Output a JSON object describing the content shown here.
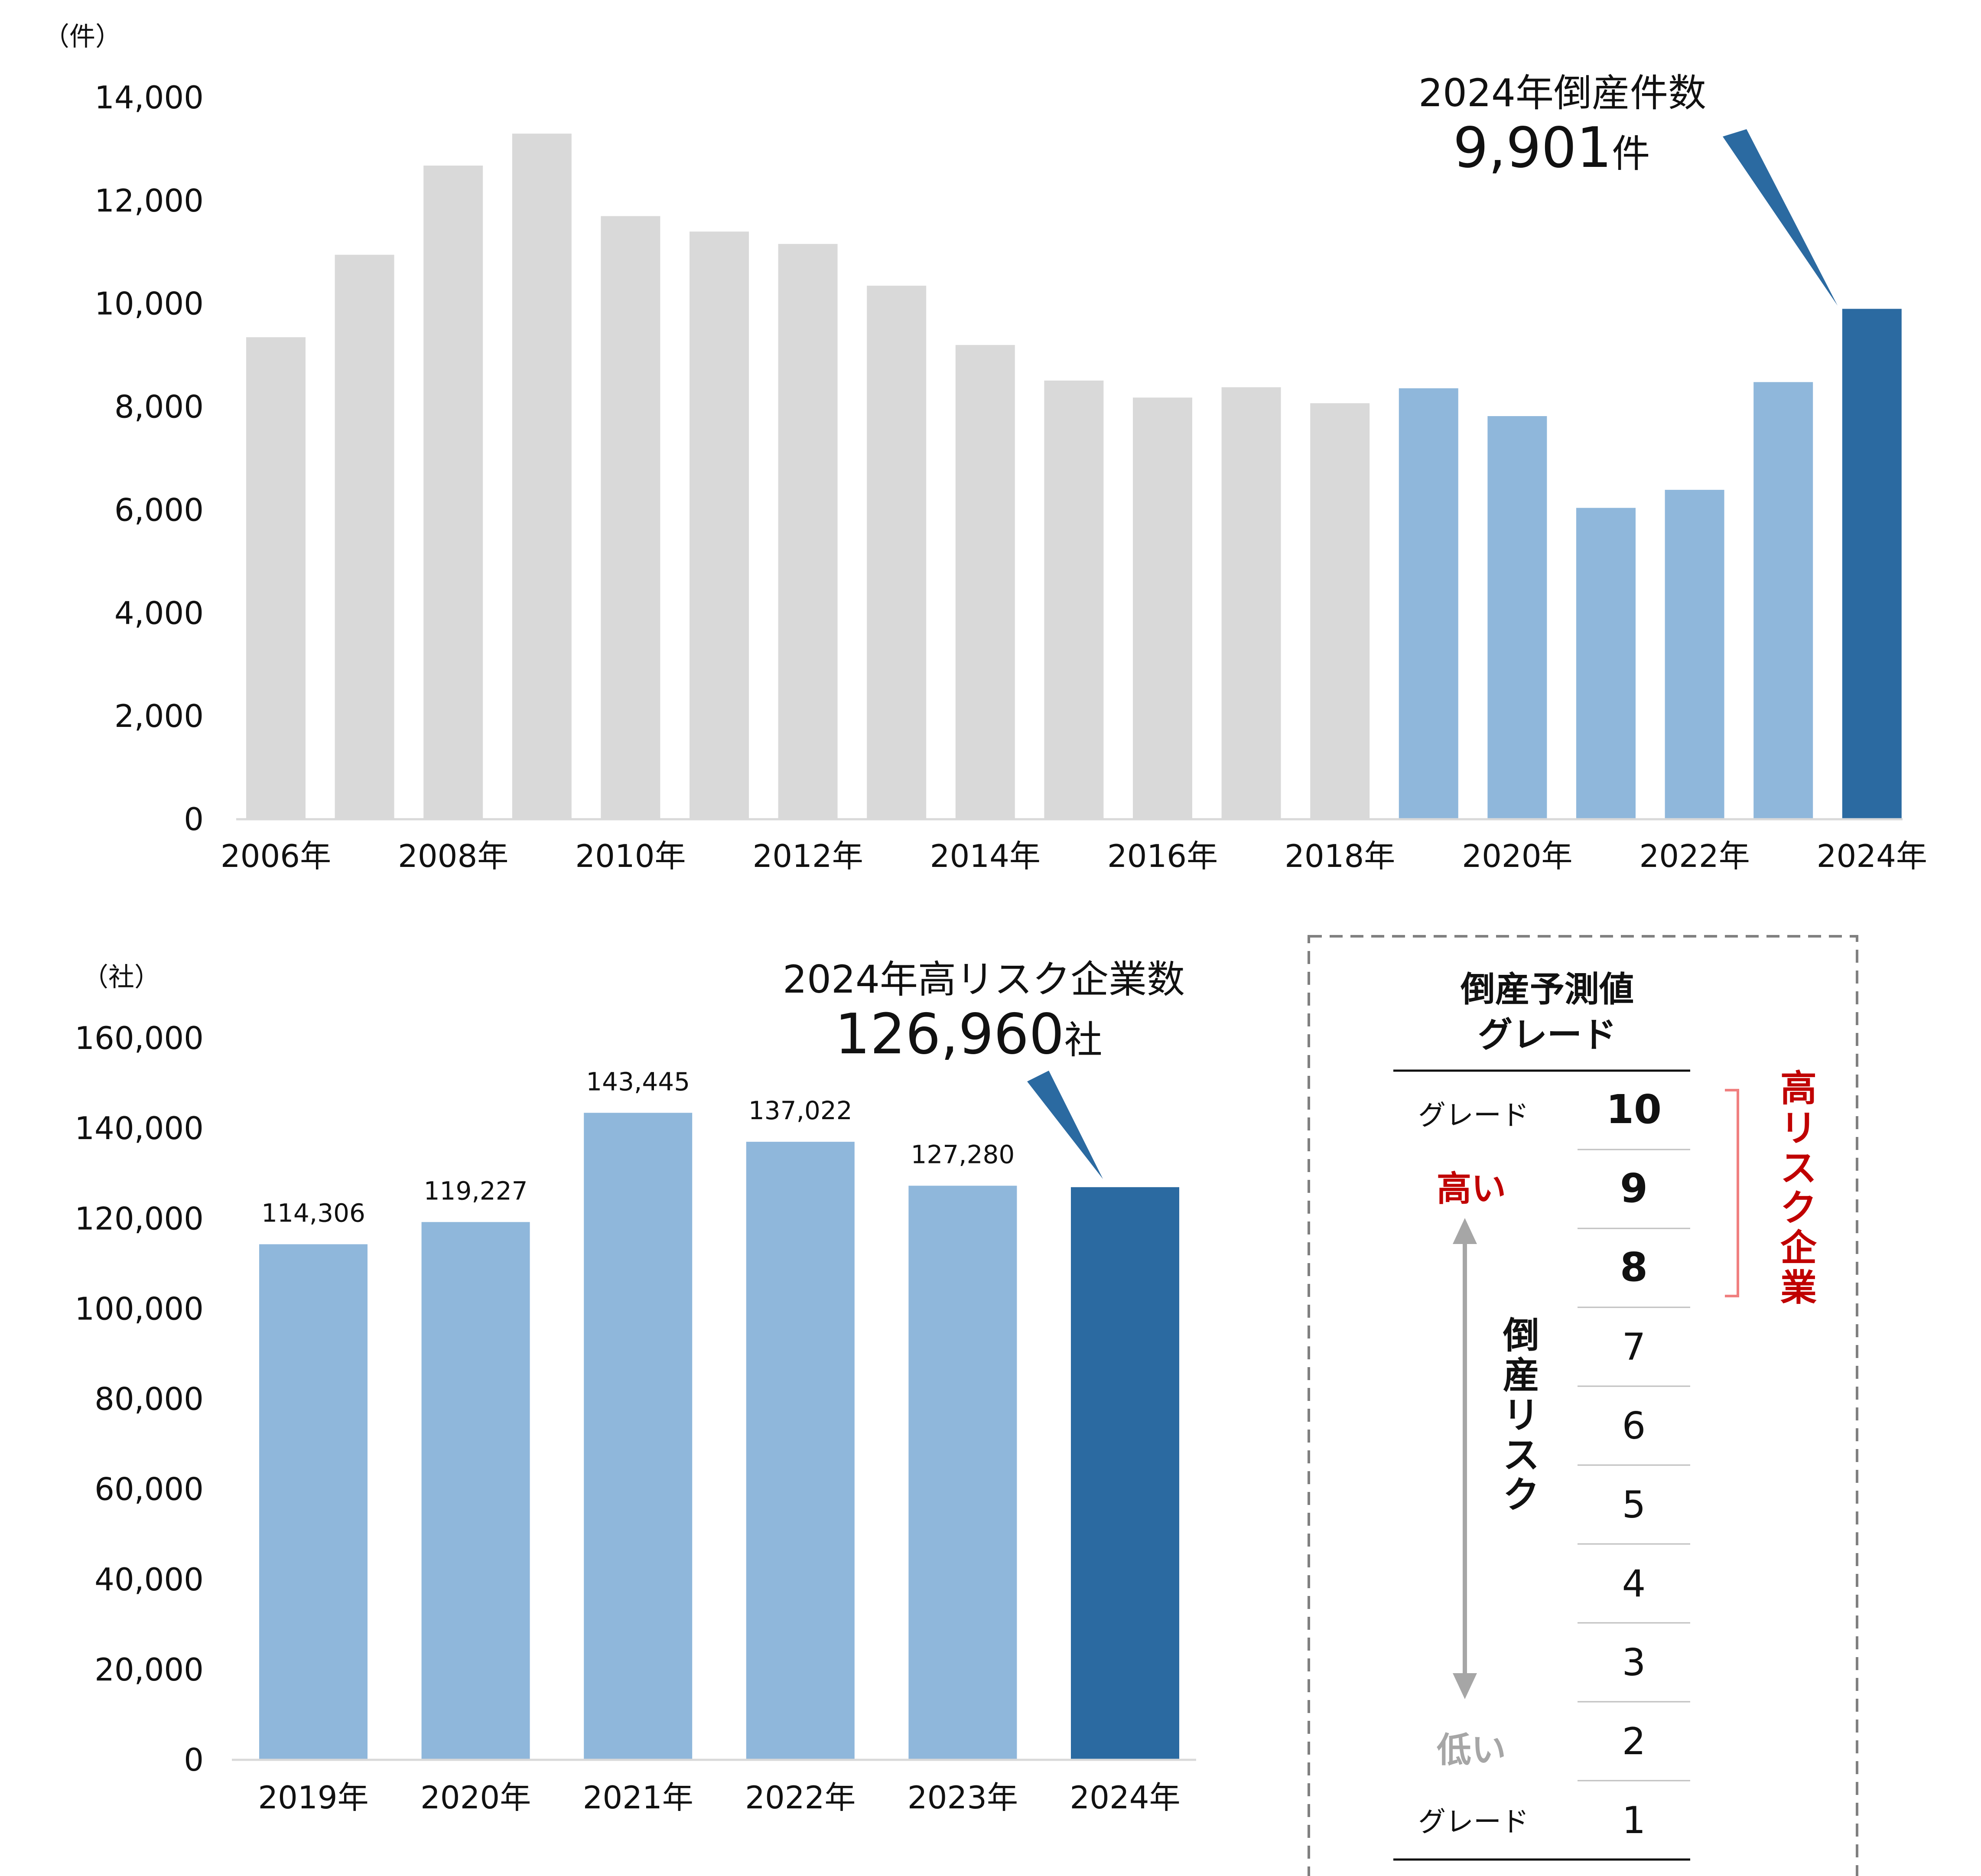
{
  "chart_data": [
    {
      "type": "bar",
      "unit_label": "（件）",
      "categories": [
        "2006年",
        "2007年",
        "2008年",
        "2009年",
        "2010年",
        "2011年",
        "2012年",
        "2013年",
        "2014年",
        "2015年",
        "2016年",
        "2017年",
        "2018年",
        "2019年",
        "2020年",
        "2021年",
        "2022年",
        "2023年",
        "2024年"
      ],
      "x_tick_labels": [
        "2006年",
        "2008年",
        "2010年",
        "2012年",
        "2014年",
        "2016年",
        "2018年",
        "2020年",
        "2022年",
        "2024年"
      ],
      "values": [
        9350,
        10950,
        12680,
        13300,
        11700,
        11400,
        11160,
        10350,
        9200,
        8510,
        8180,
        8380,
        8070,
        8360,
        7820,
        6040,
        6390,
        8480,
        9901
      ],
      "bar_colors": [
        "#d9d9d9",
        "#d9d9d9",
        "#d9d9d9",
        "#d9d9d9",
        "#d9d9d9",
        "#d9d9d9",
        "#d9d9d9",
        "#d9d9d9",
        "#d9d9d9",
        "#d9d9d9",
        "#d9d9d9",
        "#d9d9d9",
        "#d9d9d9",
        "#8fb7db",
        "#8fb7db",
        "#8fb7db",
        "#8fb7db",
        "#8fb7db",
        "#2b6aa1"
      ],
      "ylim": [
        0,
        14000
      ],
      "y_ticks": [
        0,
        2000,
        4000,
        6000,
        8000,
        10000,
        12000,
        14000
      ],
      "y_tick_labels": [
        "0",
        "2,000",
        "4,000",
        "6,000",
        "8,000",
        "10,000",
        "12,000",
        "14,000"
      ],
      "grid": false,
      "annotation": {
        "line1": "2024年倒産件数",
        "value": "9,901",
        "suffix": "件",
        "target_category": "2024年"
      }
    },
    {
      "type": "bar",
      "unit_label": "（社）",
      "categories": [
        "2019年",
        "2020年",
        "2021年",
        "2022年",
        "2023年",
        "2024年"
      ],
      "values": [
        114306,
        119227,
        143445,
        137022,
        127280,
        126960
      ],
      "data_labels": [
        "114,306",
        "119,227",
        "143,445",
        "137,022",
        "127,280",
        ""
      ],
      "bar_colors": [
        "#8fb7db",
        "#8fb7db",
        "#8fb7db",
        "#8fb7db",
        "#8fb7db",
        "#2b6aa1"
      ],
      "ylim": [
        0,
        160000
      ],
      "y_ticks": [
        0,
        20000,
        40000,
        60000,
        80000,
        100000,
        120000,
        140000,
        160000
      ],
      "y_tick_labels": [
        "0",
        "20,000",
        "40,000",
        "60,000",
        "80,000",
        "100,000",
        "120,000",
        "140,000",
        "160,000"
      ],
      "grid": false,
      "annotation": {
        "line1": "2024年高リスク企業数",
        "value": "126,960",
        "suffix": "社",
        "target_category": "2024年"
      }
    }
  ],
  "legend_box": {
    "title_line1": "倒産予測値",
    "title_line2": "グレード",
    "grades": [
      "10",
      "9",
      "8",
      "7",
      "6",
      "5",
      "4",
      "3",
      "2",
      "1"
    ],
    "bold_grades": [
      "10",
      "9",
      "8"
    ],
    "grade_word_top": "グレード",
    "grade_word_bottom": "グレード",
    "high_label": "高い",
    "low_label": "低い",
    "risk_label": "倒産リスク",
    "high_risk_label": "高リスク企業",
    "colors": {
      "high": "#c00000",
      "low": "#a6a6a6",
      "bracket": "#f08080",
      "arrow": "#a6a6a6",
      "border": "#808080"
    }
  }
}
